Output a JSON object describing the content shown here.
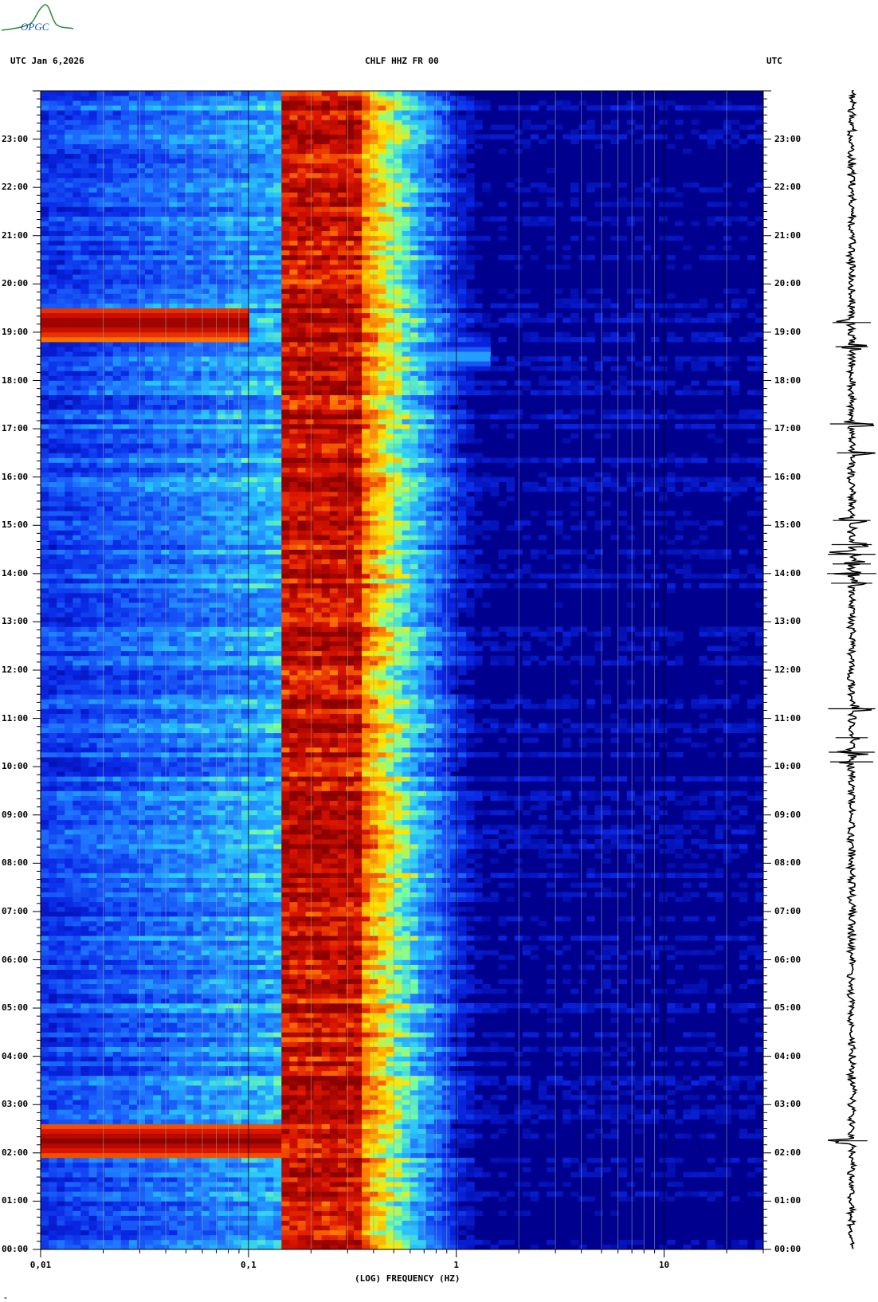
{
  "header": {
    "left": "UTC  Jan 6,2026",
    "center": "CHLF HHZ FR 00",
    "right": "UTC"
  },
  "logo": {
    "text": "OPGC"
  },
  "footnote": "≈",
  "colors": {
    "background": "#00008f",
    "low_band": "#1a3cff",
    "mid": "#29bfff",
    "yellow": "#ffdc00",
    "orange": "#ff6600",
    "red": "#b00000",
    "dark_red": "#8a0000",
    "seismogram": "#000000"
  },
  "chart_data": {
    "type": "heatmap",
    "title": "CHLF HHZ FR 00",
    "xlabel": "(LOG) FREQUENCY (HZ)",
    "ylabel_left": "UTC",
    "ylabel_right": "UTC",
    "x_scale": "log",
    "xlim": [
      0.01,
      30
    ],
    "x_ticks": [
      "0,01",
      "0,1",
      "1",
      "10"
    ],
    "ylim_hours": [
      0,
      24
    ],
    "y_ticks": [
      "00:00",
      "01:00",
      "02:00",
      "03:00",
      "04:00",
      "05:00",
      "06:00",
      "07:00",
      "08:00",
      "09:00",
      "10:00",
      "11:00",
      "12:00",
      "13:00",
      "14:00",
      "15:00",
      "16:00",
      "17:00",
      "18:00",
      "19:00",
      "20:00",
      "21:00",
      "22:00",
      "23:00"
    ],
    "microseism_peak_hz": [
      0.15,
      0.35
    ],
    "events": [
      {
        "time_hours": 2.25,
        "f_min_hz": 0.01,
        "f_max_hz": 0.14,
        "level": "high"
      },
      {
        "time_hours": 19.2,
        "f_min_hz": 0.01,
        "f_max_hz": 0.1,
        "level": "high"
      },
      {
        "time_hours": 18.5,
        "f_min_hz": 0.35,
        "f_max_hz": 1.5,
        "level": "low"
      }
    ],
    "seismogram_spikes_hours": [
      19.2,
      18.7,
      17.1,
      16.5,
      15.1,
      14.6,
      14.4,
      14.2,
      14.0,
      13.8,
      11.2,
      10.6,
      10.3,
      10.1,
      2.25
    ]
  }
}
